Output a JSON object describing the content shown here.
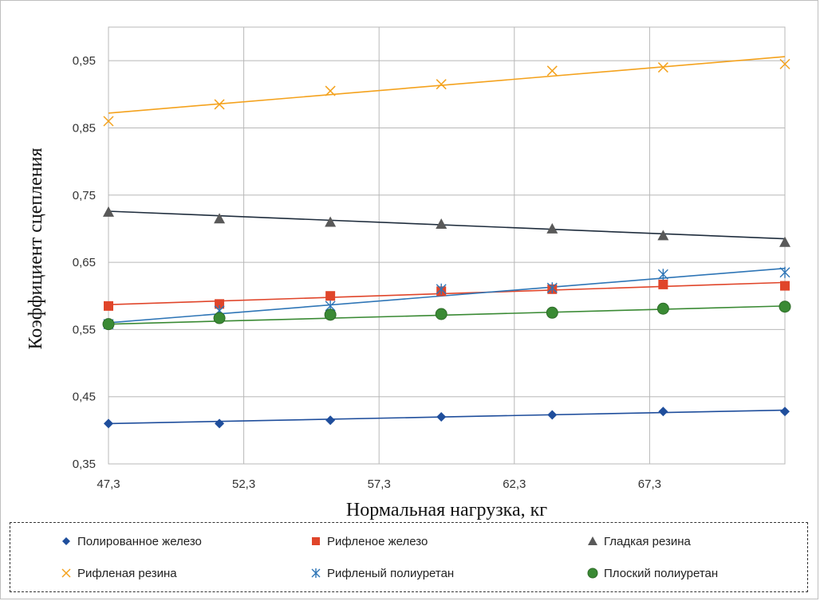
{
  "chart_data": {
    "type": "line",
    "xlabel": "Нормальная нагрузка, кг",
    "ylabel": "Коэффициент сцепления",
    "xlim": [
      47.3,
      72.3
    ],
    "ylim": [
      0.35,
      1.0
    ],
    "x_ticks": [
      "47,3",
      "52,3",
      "57,3",
      "62,3",
      "67,3"
    ],
    "y_ticks": [
      "0,35",
      "0,45",
      "0,55",
      "0,65",
      "0,75",
      "0,85",
      "0,95"
    ],
    "grid": true,
    "legend_position": "bottom",
    "series": [
      {
        "name": "Полированное железо",
        "color": "#1f4e9c",
        "marker": "diamond",
        "x": [
          47.3,
          51.4,
          55.5,
          59.6,
          63.7,
          67.8,
          72.3
        ],
        "values": [
          0.41,
          0.41,
          0.415,
          0.42,
          0.423,
          0.428,
          0.428
        ],
        "trend": [
          0.41,
          0.43
        ]
      },
      {
        "name": "Рифленое железо",
        "color": "#e0452a",
        "marker": "square",
        "x": [
          47.3,
          51.4,
          55.5,
          59.6,
          63.7,
          67.8,
          72.3
        ],
        "values": [
          0.585,
          0.588,
          0.6,
          0.607,
          0.61,
          0.617,
          0.615
        ],
        "trend": [
          0.587,
          0.62
        ]
      },
      {
        "name": "Гладкая резина",
        "color": "#595959",
        "line_color": "#1f2d3d",
        "marker": "triangle",
        "x": [
          47.3,
          51.4,
          55.5,
          59.6,
          63.7,
          67.8,
          72.3
        ],
        "values": [
          0.725,
          0.715,
          0.71,
          0.707,
          0.7,
          0.69,
          0.68
        ],
        "trend": [
          0.726,
          0.685
        ]
      },
      {
        "name": "Рифленая резина",
        "color": "#f4a21d",
        "marker": "x",
        "x": [
          47.3,
          51.4,
          55.5,
          59.6,
          63.7,
          67.8,
          72.3
        ],
        "values": [
          0.86,
          0.885,
          0.905,
          0.915,
          0.935,
          0.94,
          0.945
        ],
        "trend": [
          0.872,
          0.956
        ]
      },
      {
        "name": "Рифленый полиуретан",
        "color": "#2e75b6",
        "marker": "asterisk",
        "x": [
          47.3,
          51.4,
          55.5,
          59.6,
          63.7,
          67.8,
          72.3
        ],
        "values": [
          0.558,
          0.578,
          0.585,
          0.61,
          0.612,
          0.632,
          0.635
        ],
        "trend": [
          0.56,
          0.641
        ]
      },
      {
        "name": "Плоский полиуретан",
        "color": "#3a8a34",
        "marker": "circle",
        "x": [
          47.3,
          51.4,
          55.5,
          59.6,
          63.7,
          67.8,
          72.3
        ],
        "values": [
          0.558,
          0.567,
          0.572,
          0.573,
          0.575,
          0.581,
          0.584
        ],
        "trend": [
          0.558,
          0.585
        ]
      }
    ]
  }
}
